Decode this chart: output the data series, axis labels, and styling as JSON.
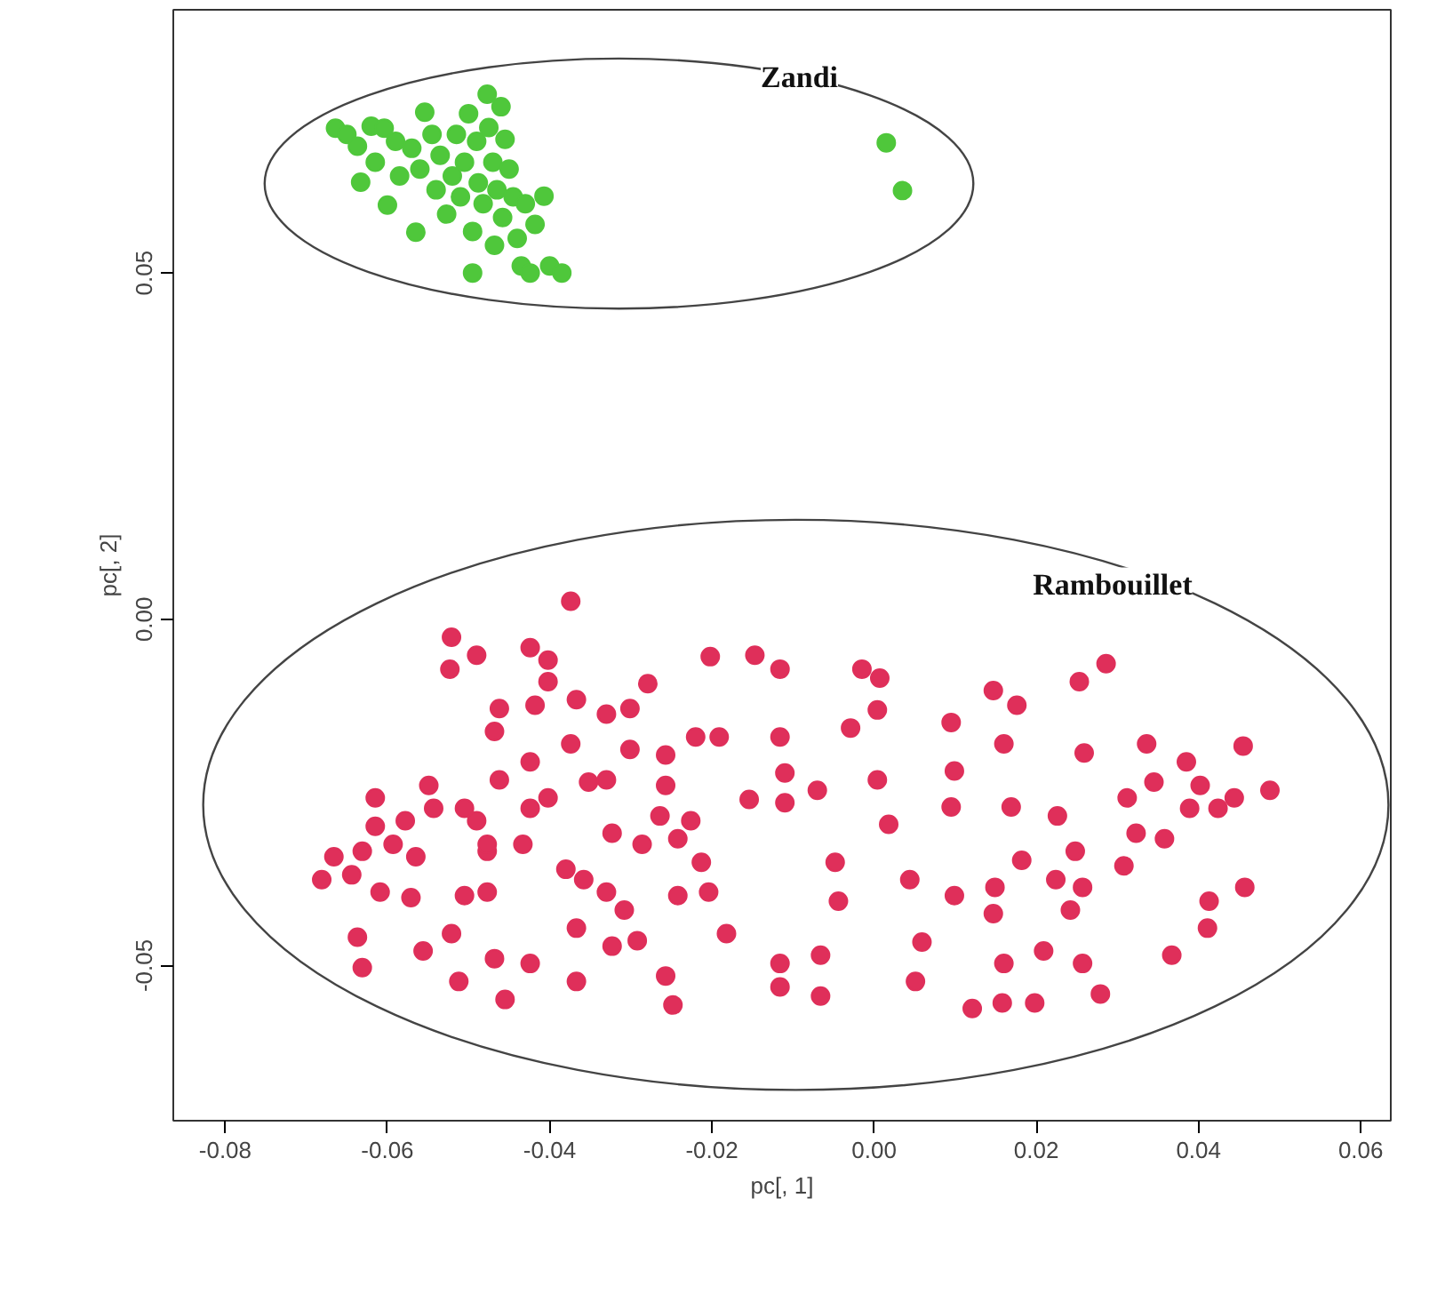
{
  "chart_data": {
    "type": "scatter",
    "xlabel": "pc[, 1]",
    "ylabel": "pc[, 2]",
    "xlim": [
      -0.0864,
      0.0637
    ],
    "ylim": [
      -0.0724,
      0.088
    ],
    "xticks": [
      {
        "value": -0.08,
        "label": "-0.08"
      },
      {
        "value": -0.06,
        "label": "-0.06"
      },
      {
        "value": -0.04,
        "label": "-0.04"
      },
      {
        "value": -0.02,
        "label": "-0.02"
      },
      {
        "value": 0,
        "label": "0.00"
      },
      {
        "value": 0.02,
        "label": "0.02"
      },
      {
        "value": 0.04,
        "label": "0.04"
      },
      {
        "value": 0.06,
        "label": "0.06"
      }
    ],
    "yticks": [
      {
        "value": -0.05,
        "label": "-0.05"
      },
      {
        "value": 0,
        "label": "0.00"
      },
      {
        "value": 0.05,
        "label": "0.05"
      }
    ],
    "grid": false,
    "legend": false,
    "marker": "circle",
    "series": [
      {
        "name": "Zandi",
        "color": "#4fc73b",
        "x": [
          -0.0664,
          -0.065,
          -0.0637,
          -0.062,
          -0.0604,
          -0.059,
          -0.0633,
          -0.0615,
          -0.06,
          -0.0585,
          -0.057,
          -0.0554,
          -0.056,
          -0.0565,
          -0.0545,
          -0.054,
          -0.0535,
          -0.0527,
          -0.052,
          -0.0515,
          -0.051,
          -0.0505,
          -0.05,
          -0.0495,
          -0.049,
          -0.0488,
          -0.0482,
          -0.0477,
          -0.0475,
          -0.047,
          -0.0468,
          -0.0465,
          -0.046,
          -0.0458,
          -0.0455,
          -0.045,
          -0.0445,
          -0.044,
          -0.0435,
          -0.043,
          -0.0424,
          -0.0418,
          -0.0407,
          -0.0495,
          -0.04,
          -0.0385,
          0.0015,
          0.0035
        ],
        "values": [
          0.0709,
          0.07,
          0.0683,
          0.0712,
          0.0709,
          0.069,
          0.0631,
          0.066,
          0.0598,
          0.064,
          0.068,
          0.0732,
          0.065,
          0.0559,
          0.07,
          0.062,
          0.067,
          0.0585,
          0.064,
          0.07,
          0.061,
          0.066,
          0.073,
          0.056,
          0.069,
          0.063,
          0.06,
          0.0758,
          0.071,
          0.066,
          0.054,
          0.062,
          0.074,
          0.058,
          0.0693,
          0.065,
          0.061,
          0.055,
          0.051,
          0.06,
          0.05,
          0.057,
          0.0611,
          0.05,
          0.051,
          0.05,
          0.0688,
          0.0619
        ]
      },
      {
        "name": "Rambouillet",
        "color": "#df2f5a",
        "x": [
          -0.0374,
          -0.0521,
          -0.049,
          -0.0523,
          -0.0424,
          -0.0402,
          -0.0402,
          -0.0462,
          -0.0468,
          -0.0418,
          -0.0367,
          -0.033,
          -0.0301,
          -0.0279,
          -0.0374,
          -0.0301,
          -0.0257,
          -0.022,
          -0.0191,
          -0.0202,
          -0.0147,
          -0.0116,
          -0.0116,
          -0.011,
          -0.011,
          -0.0154,
          -0.0424,
          -0.0462,
          -0.0424,
          -0.0402,
          -0.0352,
          -0.033,
          -0.0257,
          -0.0264,
          -0.0226,
          -0.0323,
          -0.0286,
          -0.0242,
          -0.0213,
          -0.0204,
          -0.0242,
          -0.049,
          -0.0549,
          -0.0543,
          -0.0578,
          -0.0615,
          -0.0615,
          -0.0593,
          -0.0631,
          -0.0565,
          -0.0666,
          -0.0681,
          -0.0644,
          -0.0609,
          -0.0571,
          -0.0505,
          -0.0477,
          -0.0477,
          -0.0433,
          -0.038,
          -0.0358,
          -0.033,
          -0.0308,
          -0.0367,
          -0.0323,
          -0.0292,
          -0.0257,
          -0.0248,
          -0.0182,
          -0.0116,
          -0.0116,
          -0.0367,
          -0.0455,
          -0.0424,
          -0.0468,
          -0.0512,
          -0.0521,
          -0.0556,
          -0.0637,
          -0.0631,
          -0.0505,
          -0.0477,
          -0.0015,
          0.0007,
          0.0004,
          -0.0029,
          -0.007,
          0.0004,
          0.0018,
          -0.0048,
          -0.0044,
          -0.0066,
          -0.0066,
          0.0044,
          0.0059,
          0.0051,
          0.0095,
          0.0099,
          0.0095,
          0.0147,
          0.0176,
          0.016,
          0.0169,
          0.0099,
          0.0149,
          0.0147,
          0.0182,
          0.0226,
          0.0224,
          0.0248,
          0.0257,
          0.0242,
          0.016,
          0.0121,
          0.0158,
          0.0198,
          0.0209,
          0.0257,
          0.0279,
          0.0253,
          0.0286,
          0.0259,
          0.0312,
          0.0323,
          0.0308,
          0.0336,
          0.0345,
          0.0358,
          0.0385,
          0.0389,
          0.0402,
          0.0424,
          0.0444,
          0.0455,
          0.0488,
          0.0457,
          0.0413,
          0.0411,
          0.0367
        ],
        "values": [
          0.0026,
          -0.0026,
          -0.0052,
          -0.0072,
          -0.0041,
          -0.0059,
          -0.009,
          -0.0129,
          -0.0162,
          -0.0124,
          -0.0116,
          -0.0137,
          -0.0129,
          -0.0093,
          -0.018,
          -0.0188,
          -0.0196,
          -0.017,
          -0.017,
          -0.0054,
          -0.0052,
          -0.0072,
          -0.017,
          -0.0222,
          -0.0265,
          -0.026,
          -0.0206,
          -0.0232,
          -0.0273,
          -0.0258,
          -0.0235,
          -0.0232,
          -0.024,
          -0.0284,
          -0.0291,
          -0.0309,
          -0.0325,
          -0.0317,
          -0.0351,
          -0.0394,
          -0.0399,
          -0.0291,
          -0.024,
          -0.0273,
          -0.0291,
          -0.0258,
          -0.0299,
          -0.0325,
          -0.0335,
          -0.0343,
          -0.0343,
          -0.0376,
          -0.0369,
          -0.0394,
          -0.0402,
          -0.0399,
          -0.0394,
          -0.0335,
          -0.0325,
          -0.0361,
          -0.0376,
          -0.0394,
          -0.042,
          -0.0446,
          -0.0472,
          -0.0464,
          -0.0515,
          -0.0557,
          -0.0454,
          -0.0497,
          -0.0531,
          -0.0523,
          -0.0549,
          -0.0497,
          -0.049,
          -0.0523,
          -0.0454,
          -0.0479,
          -0.0459,
          -0.0503,
          -0.0273,
          -0.0325,
          -0.0072,
          -0.0085,
          -0.0131,
          -0.0157,
          -0.0247,
          -0.0232,
          -0.0296,
          -0.0351,
          -0.0407,
          -0.0485,
          -0.0544,
          -0.0376,
          -0.0466,
          -0.0523,
          -0.0149,
          -0.0219,
          -0.0271,
          -0.0103,
          -0.0124,
          -0.018,
          -0.0271,
          -0.0399,
          -0.0387,
          -0.0425,
          -0.0348,
          -0.0284,
          -0.0376,
          -0.0335,
          -0.0387,
          -0.042,
          -0.0497,
          -0.0562,
          -0.0554,
          -0.0554,
          -0.0479,
          -0.0497,
          -0.0541,
          -0.009,
          -0.0064,
          -0.0193,
          -0.0258,
          -0.0309,
          -0.0356,
          -0.018,
          -0.0235,
          -0.0317,
          -0.0206,
          -0.0273,
          -0.024,
          -0.0273,
          -0.0258,
          -0.0183,
          -0.0247,
          -0.0387,
          -0.0407,
          -0.0446,
          -0.0485
        ]
      }
    ]
  }
}
